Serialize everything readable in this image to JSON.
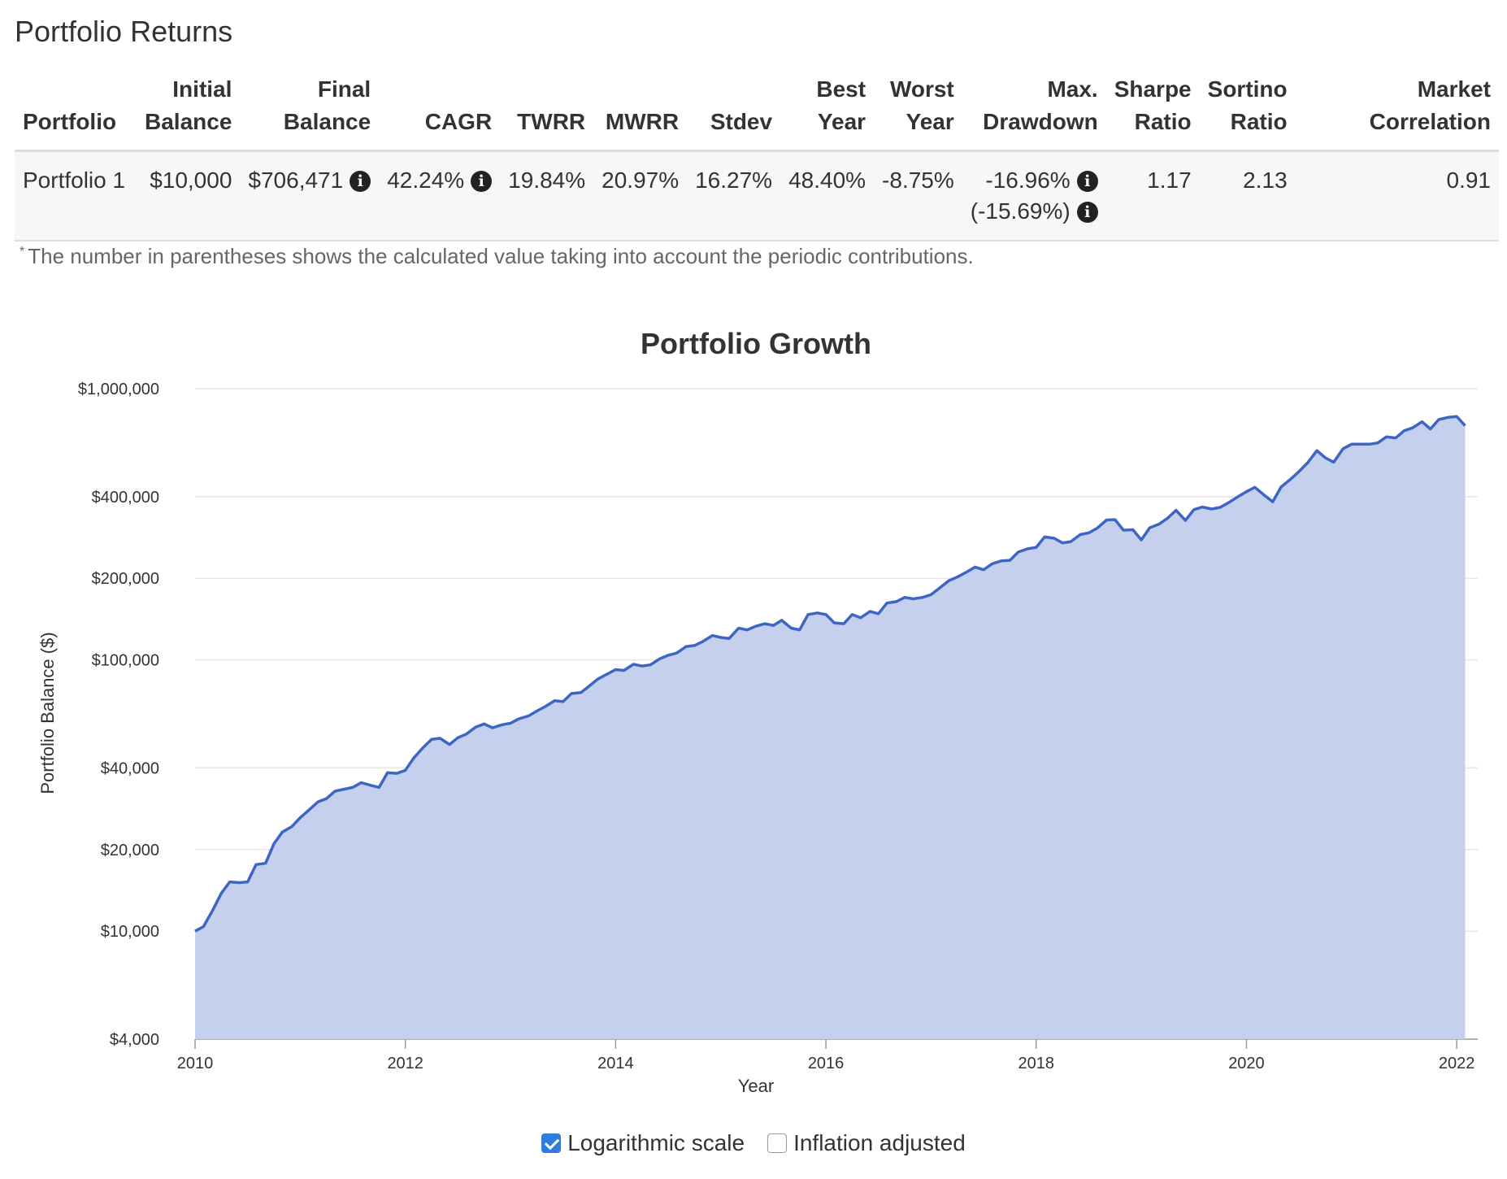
{
  "section_title": "Portfolio Returns",
  "table": {
    "headers": {
      "portfolio": [
        "Portfolio"
      ],
      "initial_balance": [
        "Initial",
        "Balance"
      ],
      "final_balance": [
        "Final",
        "Balance"
      ],
      "cagr": [
        "CAGR"
      ],
      "twrr": [
        "TWRR"
      ],
      "mwrr": [
        "MWRR"
      ],
      "stdev": [
        "Stdev"
      ],
      "best_year": [
        "Best",
        "Year"
      ],
      "worst_year": [
        "Worst",
        "Year"
      ],
      "max_drawdown": [
        "Max.",
        "Drawdown"
      ],
      "sharpe_ratio": [
        "Sharpe",
        "Ratio"
      ],
      "sortino_ratio": [
        "Sortino",
        "Ratio"
      ],
      "market_correlation": [
        "Market",
        "Correlation"
      ]
    },
    "rows": [
      {
        "portfolio": "Portfolio 1",
        "initial_balance": "$10,000",
        "final_balance": "$706,471",
        "cagr": "42.24%",
        "twrr": "19.84%",
        "mwrr": "20.97%",
        "stdev": "16.27%",
        "best_year": "48.40%",
        "worst_year": "-8.75%",
        "max_drawdown": "-16.96%",
        "max_drawdown_contrib": "(-15.69%)",
        "sharpe_ratio": "1.17",
        "sortino_ratio": "2.13",
        "market_correlation": "0.91"
      }
    ],
    "info_icon": "info-circle-icon"
  },
  "footnote": {
    "marker": "*",
    "text": "The number in parentheses shows the calculated value taking into account the periodic contributions."
  },
  "controls": {
    "log_scale_label": "Logarithmic scale",
    "log_scale_checked": true,
    "inflation_label": "Inflation adjusted",
    "inflation_checked": false
  },
  "chart_data": {
    "type": "area",
    "title": "Portfolio Growth",
    "xlabel": "Year",
    "ylabel": "Portfolio Balance ($)",
    "yscale": "log",
    "ylim": [
      4000,
      1000000
    ],
    "xlim": [
      2010,
      2022.2
    ],
    "grid": true,
    "legend": "none",
    "y_ticks": [
      {
        "value": 1000000,
        "label": "$1,000,000"
      },
      {
        "value": 400000,
        "label": "$400,000"
      },
      {
        "value": 200000,
        "label": "$200,000"
      },
      {
        "value": 100000,
        "label": "$100,000"
      },
      {
        "value": 40000,
        "label": "$40,000"
      },
      {
        "value": 20000,
        "label": "$20,000"
      },
      {
        "value": 10000,
        "label": "$10,000"
      },
      {
        "value": 4000,
        "label": "$4,000"
      }
    ],
    "x_ticks": [
      {
        "value": 2010,
        "label": "2010"
      },
      {
        "value": 2012,
        "label": "2012"
      },
      {
        "value": 2014,
        "label": "2014"
      },
      {
        "value": 2016,
        "label": "2016"
      },
      {
        "value": 2018,
        "label": "2018"
      },
      {
        "value": 2020,
        "label": "2020"
      },
      {
        "value": 2022,
        "label": "2022"
      }
    ],
    "colors": {
      "line": "#3d66c4",
      "fill": "#c5d0ee",
      "grid": "#e6e6e6",
      "axis": "#999999"
    },
    "series": [
      {
        "x": [
          2010.0,
          2010.08,
          2010.17,
          2010.25,
          2010.33,
          2010.42,
          2010.5,
          2010.58,
          2010.67,
          2010.75,
          2010.83,
          2010.92,
          2011.0,
          2011.08,
          2011.17,
          2011.25,
          2011.33,
          2011.42,
          2011.5,
          2011.58,
          2011.67,
          2011.75,
          2011.83,
          2011.92,
          2012.0,
          2012.08,
          2012.17,
          2012.25,
          2012.33,
          2012.42,
          2012.5,
          2012.58,
          2012.67,
          2012.75,
          2012.83,
          2012.92,
          2013.0,
          2013.08,
          2013.17,
          2013.25,
          2013.33,
          2013.42,
          2013.5,
          2013.58,
          2013.67,
          2013.75,
          2013.83,
          2013.92,
          2014.0,
          2014.08,
          2014.17,
          2014.25,
          2014.33,
          2014.42,
          2014.5,
          2014.58,
          2014.67,
          2014.75,
          2014.83,
          2014.92,
          2015.0,
          2015.08,
          2015.17,
          2015.25,
          2015.33,
          2015.42,
          2015.5,
          2015.58,
          2015.67,
          2015.75,
          2015.83,
          2015.92,
          2016.0,
          2016.08,
          2016.17,
          2016.25,
          2016.33,
          2016.42,
          2016.5,
          2016.58,
          2016.67,
          2016.75,
          2016.83,
          2016.92,
          2017.0,
          2017.08,
          2017.17,
          2017.25,
          2017.33,
          2017.42,
          2017.5,
          2017.58,
          2017.67,
          2017.75,
          2017.83,
          2017.92,
          2018.0,
          2018.08,
          2018.17,
          2018.25,
          2018.33,
          2018.42,
          2018.5,
          2018.58,
          2018.67,
          2018.75,
          2018.83,
          2018.92,
          2019.0,
          2019.08,
          2019.17,
          2019.25,
          2019.33,
          2019.42,
          2019.5,
          2019.58,
          2019.67,
          2019.75,
          2019.83,
          2019.92,
          2020.0,
          2020.08,
          2020.17,
          2020.25,
          2020.33,
          2020.42,
          2020.5,
          2020.58,
          2020.67,
          2020.75,
          2020.83,
          2020.92,
          2021.0,
          2021.08,
          2021.17,
          2021.25,
          2021.33,
          2021.42,
          2021.5,
          2021.58,
          2021.67,
          2021.75,
          2021.83,
          2021.92,
          2022.0,
          2022.08
        ],
        "values": [
          10000,
          10400,
          12000,
          13800,
          15200,
          15100,
          15200,
          17600,
          17800,
          21000,
          23200,
          24300,
          26200,
          27900,
          30000,
          30800,
          32800,
          33400,
          33900,
          35300,
          34500,
          33900,
          38400,
          38200,
          39200,
          43500,
          47600,
          51000,
          51400,
          48800,
          51700,
          53300,
          56600,
          58100,
          56200,
          57700,
          58400,
          60700,
          62100,
          64800,
          67300,
          70800,
          70200,
          75200,
          75800,
          80200,
          85000,
          88700,
          92100,
          91500,
          96400,
          95000,
          95900,
          101000,
          104000,
          106000,
          112000,
          113000,
          117000,
          123000,
          121000,
          120000,
          131000,
          129000,
          133000,
          136000,
          134000,
          140000,
          131000,
          129000,
          147000,
          149000,
          147000,
          137000,
          136000,
          147000,
          143000,
          151000,
          148000,
          162000,
          164000,
          170000,
          168000,
          170000,
          174000,
          184000,
          196000,
          202000,
          210000,
          220000,
          215000,
          226000,
          232000,
          233000,
          250000,
          257000,
          260000,
          284000,
          281000,
          270000,
          273000,
          290000,
          294000,
          306000,
          328000,
          329000,
          301000,
          302000,
          277000,
          307000,
          317000,
          333000,
          356000,
          327000,
          358000,
          366000,
          360000,
          365000,
          380000,
          400000,
          417000,
          433000,
          405000,
          383000,
          434000,
          464000,
          495000,
          532000,
          591000,
          556000,
          536000,
          601000,
          624000,
          624000,
          624000,
          631000,
          664000,
          658000,
          700000,
          717000,
          755000,
          710000,
          770000,
          784000,
          790000,
          730000
        ]
      }
    ]
  }
}
